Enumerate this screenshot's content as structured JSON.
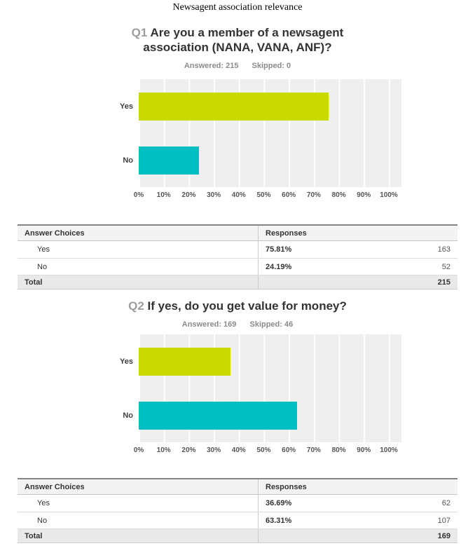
{
  "page": {
    "title": "Newsagent association relevance"
  },
  "colors": {
    "yes_bar": "#c8da02",
    "no_bar": "#00bfc2",
    "plot_bg": "#efefef",
    "q_number_gray": "#9b9ea1"
  },
  "axis_ticks": [
    "0%",
    "10%",
    "20%",
    "30%",
    "40%",
    "50%",
    "60%",
    "70%",
    "80%",
    "90%",
    "100%"
  ],
  "q1": {
    "number": "Q1",
    "title": "Are you a member of a newsagent association (NANA, VANA, ANF)?",
    "answered": "Answered: 215",
    "skipped": "Skipped: 0",
    "bars": [
      {
        "label": "Yes",
        "pct": 75.81
      },
      {
        "label": "No",
        "pct": 24.19
      }
    ],
    "table": {
      "col1": "Answer Choices",
      "col2": "Responses",
      "rows": [
        {
          "choice": "Yes",
          "pct": "75.81%",
          "count": "163"
        },
        {
          "choice": "No",
          "pct": "24.19%",
          "count": "52"
        }
      ],
      "total_label": "Total",
      "total_count": "215"
    }
  },
  "q2": {
    "number": "Q2",
    "title": "If yes, do you get value for money?",
    "answered": "Answered: 169",
    "skipped": "Skipped: 46",
    "bars": [
      {
        "label": "Yes",
        "pct": 36.69
      },
      {
        "label": "No",
        "pct": 63.31
      }
    ],
    "table": {
      "col1": "Answer Choices",
      "col2": "Responses",
      "rows": [
        {
          "choice": "Yes",
          "pct": "36.69%",
          "count": "62"
        },
        {
          "choice": "No",
          "pct": "63.31%",
          "count": "107"
        }
      ],
      "total_label": "Total",
      "total_count": "169"
    }
  },
  "chart_data": [
    {
      "type": "bar",
      "orientation": "horizontal",
      "title": "Q1 Are you a member of a newsagent association (NANA, VANA, ANF)?",
      "subtitle": "Answered: 215  Skipped: 0",
      "categories": [
        "Yes",
        "No"
      ],
      "values": [
        75.81,
        24.19
      ],
      "counts": [
        163,
        52
      ],
      "total": 215,
      "xlabel": "",
      "ylabel": "",
      "xlim": [
        0,
        100
      ],
      "tick_step_percent": 10,
      "grid": true,
      "legend": "none",
      "bar_colors": [
        "#c8da02",
        "#00bfc2"
      ]
    },
    {
      "type": "bar",
      "orientation": "horizontal",
      "title": "Q2 If yes, do you get value for money?",
      "subtitle": "Answered: 169  Skipped: 46",
      "categories": [
        "Yes",
        "No"
      ],
      "values": [
        36.69,
        63.31
      ],
      "counts": [
        62,
        107
      ],
      "total": 169,
      "xlabel": "",
      "ylabel": "",
      "xlim": [
        0,
        100
      ],
      "tick_step_percent": 10,
      "grid": true,
      "legend": "none",
      "bar_colors": [
        "#c8da02",
        "#00bfc2"
      ]
    }
  ]
}
